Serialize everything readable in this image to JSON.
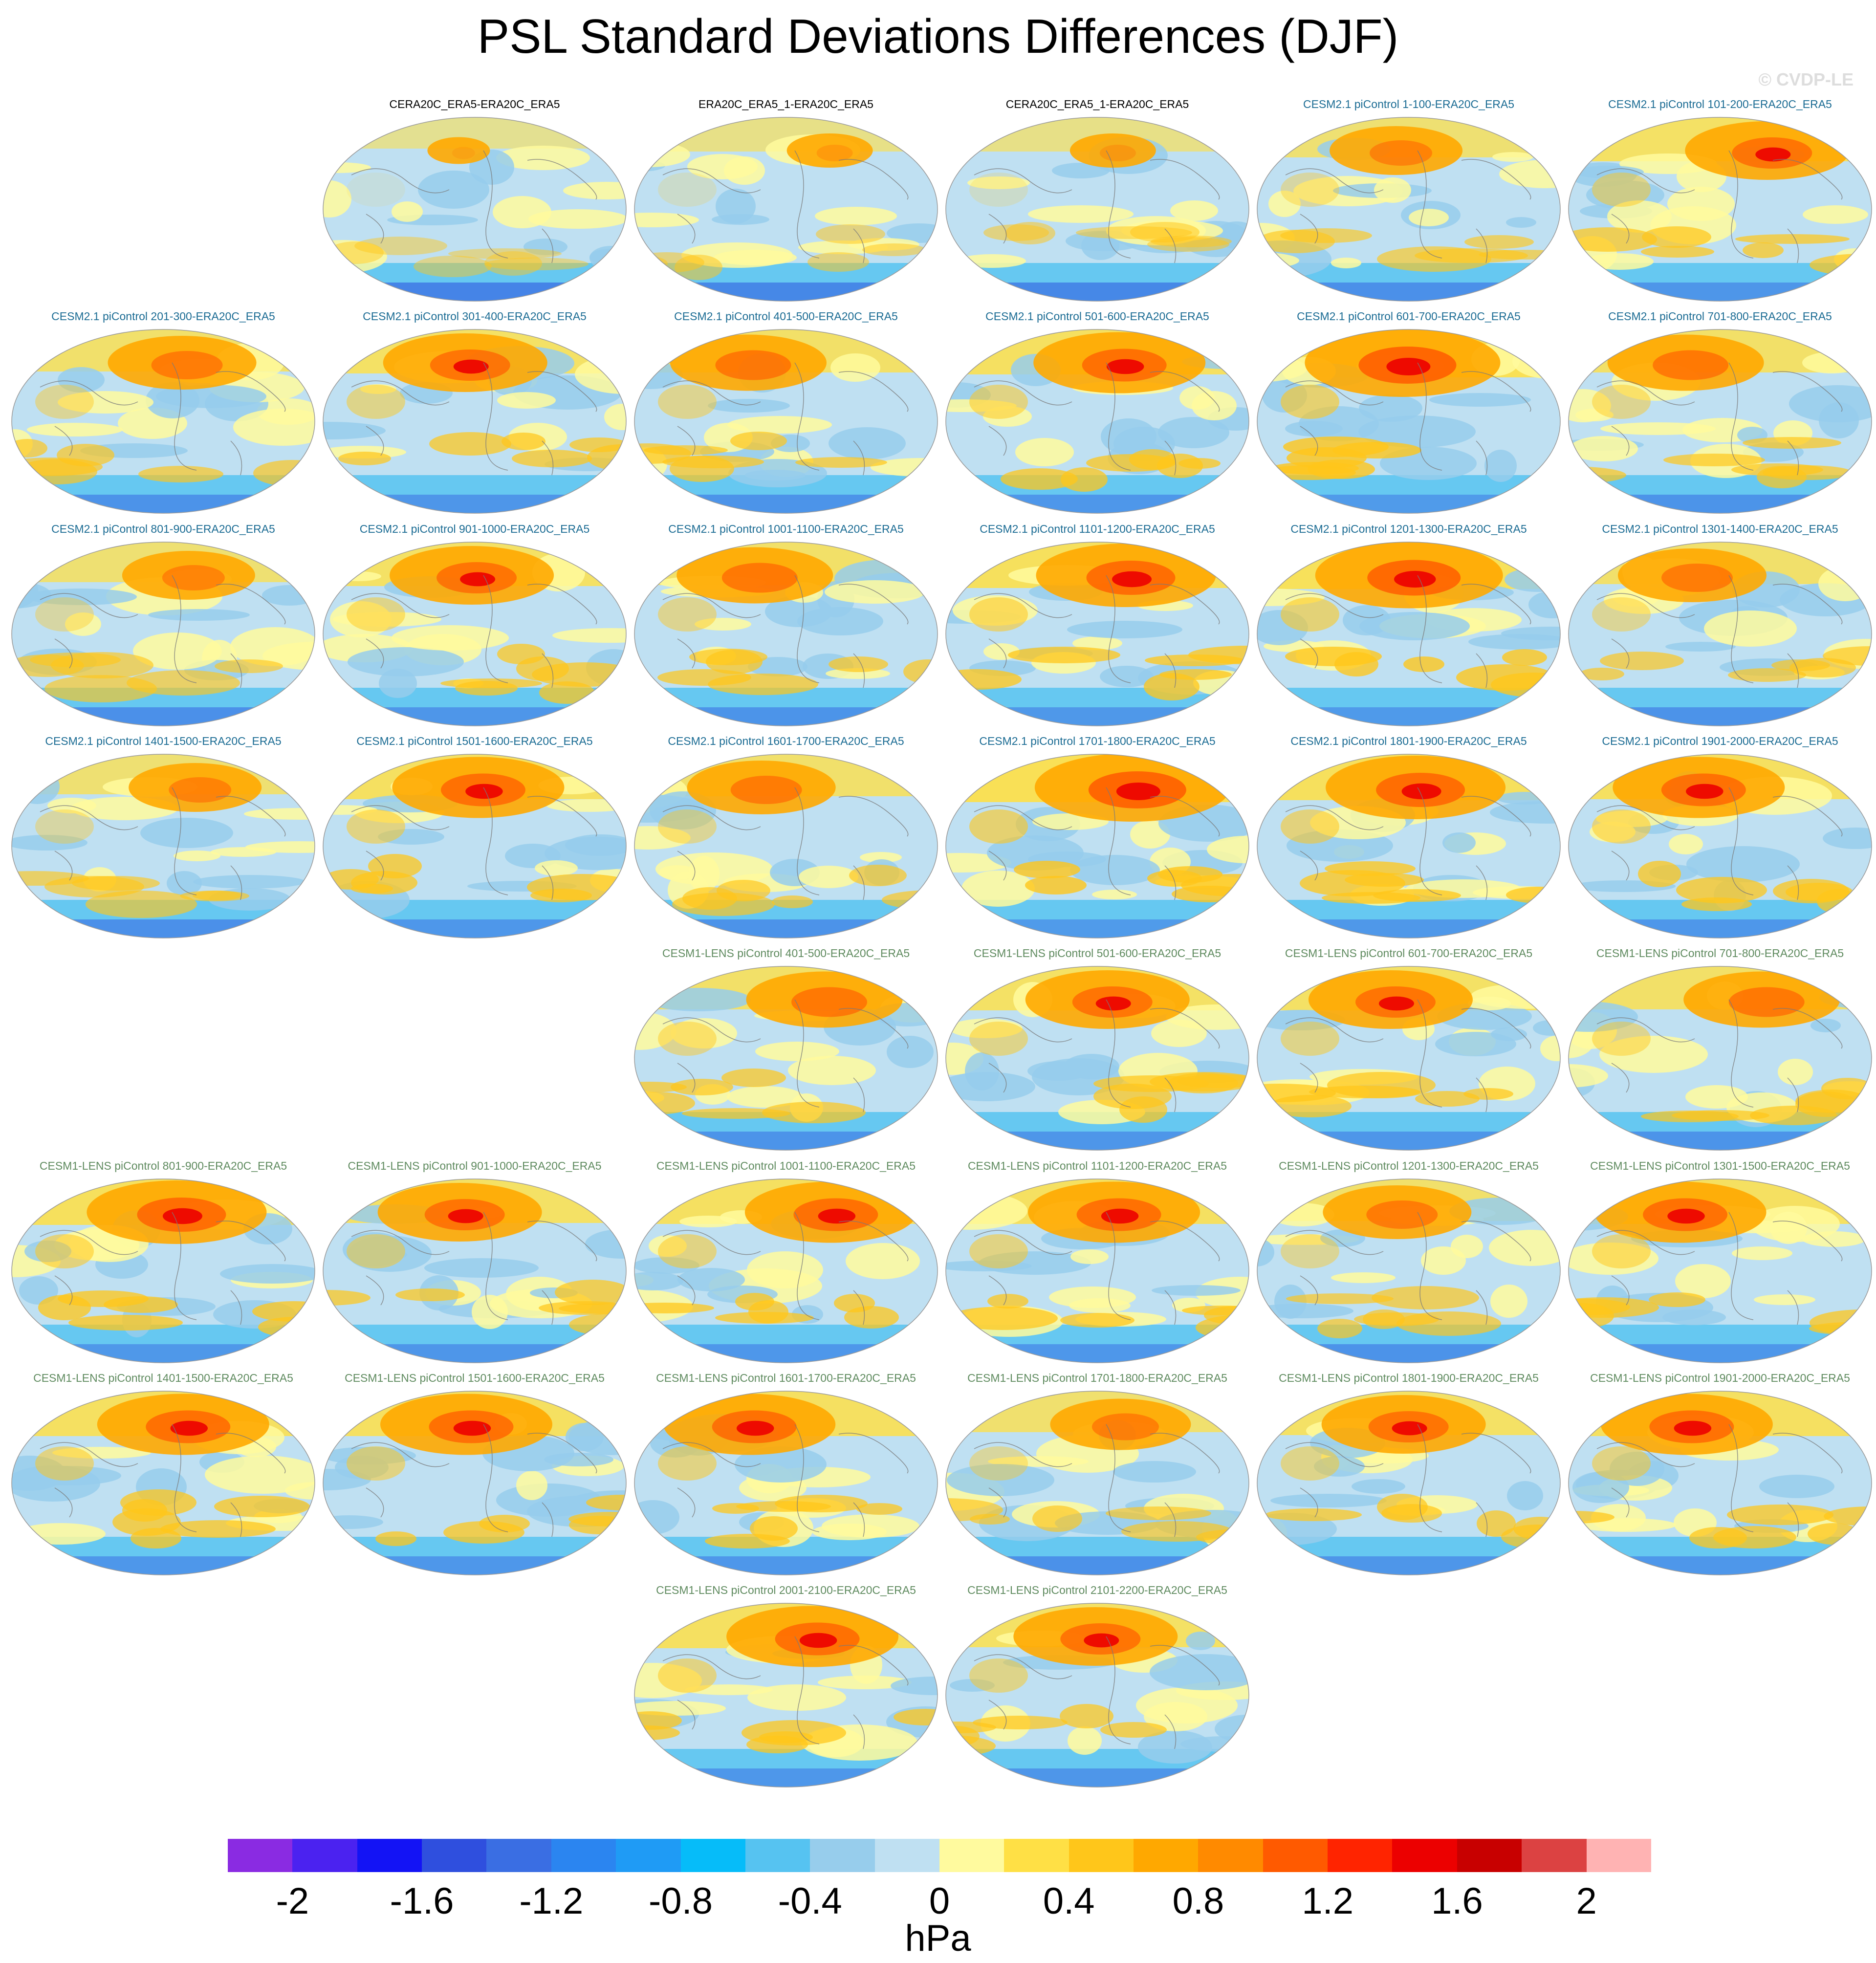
{
  "title": "PSL Standard Deviations Differences (DJF)",
  "credit": "© CVDP-LE",
  "colors": {
    "reanalysis_title": "#000000",
    "cesm2_title": "#1a6b93",
    "cesm1_title": "#5e8a5e"
  },
  "panels": [
    {
      "label": "CERA20C_ERA5-ERA20C_ERA5",
      "group": "reanalysis",
      "row": 0,
      "col": 1,
      "hot": 0.15
    },
    {
      "label": "ERA20C_ERA5_1-ERA20C_ERA5",
      "group": "reanalysis",
      "row": 0,
      "col": 2,
      "hot": 0.3
    },
    {
      "label": "CERA20C_ERA5_1-ERA20C_ERA5",
      "group": "reanalysis",
      "row": 0,
      "col": 3,
      "hot": 0.3
    },
    {
      "label": "CESM2.1 piControl 1-100-ERA20C_ERA5",
      "group": "cesm2",
      "row": 0,
      "col": 4,
      "hot": 0.6
    },
    {
      "label": "CESM2.1 piControl 101-200-ERA20C_ERA5",
      "group": "cesm2",
      "row": 0,
      "col": 5,
      "hot": 0.8
    },
    {
      "label": "CESM2.1 piControl 201-300-ERA20C_ERA5",
      "group": "cesm2",
      "row": 1,
      "col": 0,
      "hot": 0.7
    },
    {
      "label": "CESM2.1 piControl 301-400-ERA20C_ERA5",
      "group": "cesm2",
      "row": 1,
      "col": 1,
      "hot": 0.8
    },
    {
      "label": "CESM2.1 piControl 401-500-ERA20C_ERA5",
      "group": "cesm2",
      "row": 1,
      "col": 2,
      "hot": 0.75
    },
    {
      "label": "CESM2.1 piControl 501-600-ERA20C_ERA5",
      "group": "cesm2",
      "row": 1,
      "col": 3,
      "hot": 0.85
    },
    {
      "label": "CESM2.1 piControl 601-700-ERA20C_ERA5",
      "group": "cesm2",
      "row": 1,
      "col": 4,
      "hot": 1.0
    },
    {
      "label": "CESM2.1 piControl 701-800-ERA20C_ERA5",
      "group": "cesm2",
      "row": 1,
      "col": 5,
      "hot": 0.75
    },
    {
      "label": "CESM2.1 piControl 801-900-ERA20C_ERA5",
      "group": "cesm2",
      "row": 2,
      "col": 0,
      "hot": 0.6
    },
    {
      "label": "CESM2.1 piControl 901-1000-ERA20C_ERA5",
      "group": "cesm2",
      "row": 2,
      "col": 1,
      "hot": 0.8
    },
    {
      "label": "CESM2.1 piControl 1001-1100-ERA20C_ERA5",
      "group": "cesm2",
      "row": 2,
      "col": 2,
      "hot": 0.75
    },
    {
      "label": "CESM2.1 piControl 1101-1200-ERA20C_ERA5",
      "group": "cesm2",
      "row": 2,
      "col": 3,
      "hot": 0.9
    },
    {
      "label": "CESM2.1 piControl 1201-1300-ERA20C_ERA5",
      "group": "cesm2",
      "row": 2,
      "col": 4,
      "hot": 0.95
    },
    {
      "label": "CESM2.1 piControl 1301-1400-ERA20C_ERA5",
      "group": "cesm2",
      "row": 2,
      "col": 5,
      "hot": 0.7
    },
    {
      "label": "CESM2.1 piControl 1401-1500-ERA20C_ERA5",
      "group": "cesm2",
      "row": 3,
      "col": 0,
      "hot": 0.6
    },
    {
      "label": "CESM2.1 piControl 1501-1600-ERA20C_ERA5",
      "group": "cesm2",
      "row": 3,
      "col": 1,
      "hot": 0.85
    },
    {
      "label": "CESM2.1 piControl 1601-1700-ERA20C_ERA5",
      "group": "cesm2",
      "row": 3,
      "col": 2,
      "hot": 0.7
    },
    {
      "label": "CESM2.1 piControl 1701-1800-ERA20C_ERA5",
      "group": "cesm2",
      "row": 3,
      "col": 3,
      "hot": 1.0
    },
    {
      "label": "CESM2.1 piControl 1801-1900-ERA20C_ERA5",
      "group": "cesm2",
      "row": 3,
      "col": 4,
      "hot": 0.9
    },
    {
      "label": "CESM2.1 piControl 1901-2000-ERA20C_ERA5",
      "group": "cesm2",
      "row": 3,
      "col": 5,
      "hot": 0.85
    },
    {
      "label": "CESM1-LENS piControl 401-500-ERA20C_ERA5",
      "group": "cesm1",
      "row": 4,
      "col": 2,
      "hot": 0.75
    },
    {
      "label": "CESM1-LENS piControl 501-600-ERA20C_ERA5",
      "group": "cesm1",
      "row": 4,
      "col": 3,
      "hot": 0.8
    },
    {
      "label": "CESM1-LENS piControl 601-700-ERA20C_ERA5",
      "group": "cesm1",
      "row": 4,
      "col": 4,
      "hot": 0.8
    },
    {
      "label": "CESM1-LENS piControl 701-800-ERA20C_ERA5",
      "group": "cesm1",
      "row": 4,
      "col": 5,
      "hot": 0.75
    },
    {
      "label": "CESM1-LENS piControl 801-900-ERA20C_ERA5",
      "group": "cesm1",
      "row": 5,
      "col": 0,
      "hot": 0.9
    },
    {
      "label": "CESM1-LENS piControl 901-1000-ERA20C_ERA5",
      "group": "cesm1",
      "row": 5,
      "col": 1,
      "hot": 0.8
    },
    {
      "label": "CESM1-LENS piControl 1001-1100-ERA20C_ERA5",
      "group": "cesm1",
      "row": 5,
      "col": 2,
      "hot": 0.85
    },
    {
      "label": "CESM1-LENS piControl 1101-1200-ERA20C_ERA5",
      "group": "cesm1",
      "row": 5,
      "col": 3,
      "hot": 0.85
    },
    {
      "label": "CESM1-LENS piControl 1201-1300-ERA20C_ERA5",
      "group": "cesm1",
      "row": 5,
      "col": 4,
      "hot": 0.7
    },
    {
      "label": "CESM1-LENS piControl 1301-1500-ERA20C_ERA5",
      "group": "cesm1",
      "row": 5,
      "col": 5,
      "hot": 0.85
    },
    {
      "label": "CESM1-LENS piControl 1401-1500-ERA20C_ERA5",
      "group": "cesm1",
      "row": 6,
      "col": 0,
      "hot": 0.85
    },
    {
      "label": "CESM1-LENS piControl 1501-1600-ERA20C_ERA5",
      "group": "cesm1",
      "row": 6,
      "col": 1,
      "hot": 0.85
    },
    {
      "label": "CESM1-LENS piControl 1601-1700-ERA20C_ERA5",
      "group": "cesm1",
      "row": 6,
      "col": 2,
      "hot": 0.85
    },
    {
      "label": "CESM1-LENS piControl 1701-1800-ERA20C_ERA5",
      "group": "cesm1",
      "row": 6,
      "col": 3,
      "hot": 0.65
    },
    {
      "label": "CESM1-LENS piControl 1801-1900-ERA20C_ERA5",
      "group": "cesm1",
      "row": 6,
      "col": 4,
      "hot": 0.8
    },
    {
      "label": "CESM1-LENS piControl 1901-2000-ERA20C_ERA5",
      "group": "cesm1",
      "row": 6,
      "col": 5,
      "hot": 0.85
    },
    {
      "label": "CESM1-LENS piControl 2001-2100-ERA20C_ERA5",
      "group": "cesm1",
      "row": 7,
      "col": 2,
      "hot": 0.85
    },
    {
      "label": "CESM1-LENS piControl 2101-2200-ERA20C_ERA5",
      "group": "cesm1",
      "row": 7,
      "col": 3,
      "hot": 0.8
    }
  ],
  "colorbar": {
    "colors": [
      "#8a2be2",
      "#4b22f0",
      "#1313f5",
      "#2f4fde",
      "#3a6ee3",
      "#2b85f0",
      "#1f9bf5",
      "#06bcf9",
      "#56c3f1",
      "#97cdec",
      "#bfe0f2",
      "#fffa9e",
      "#ffe045",
      "#ffc61a",
      "#ffa800",
      "#ff8a00",
      "#ff5a00",
      "#ff2400",
      "#ec0000",
      "#c80000",
      "#dc4242",
      "#ffb3b3"
    ],
    "tick_labels": [
      "-2",
      "-1.6",
      "-1.2",
      "-0.8",
      "-0.4",
      "0",
      "0.4",
      "0.8",
      "1.2",
      "1.6",
      "2"
    ],
    "units": "hPa"
  }
}
